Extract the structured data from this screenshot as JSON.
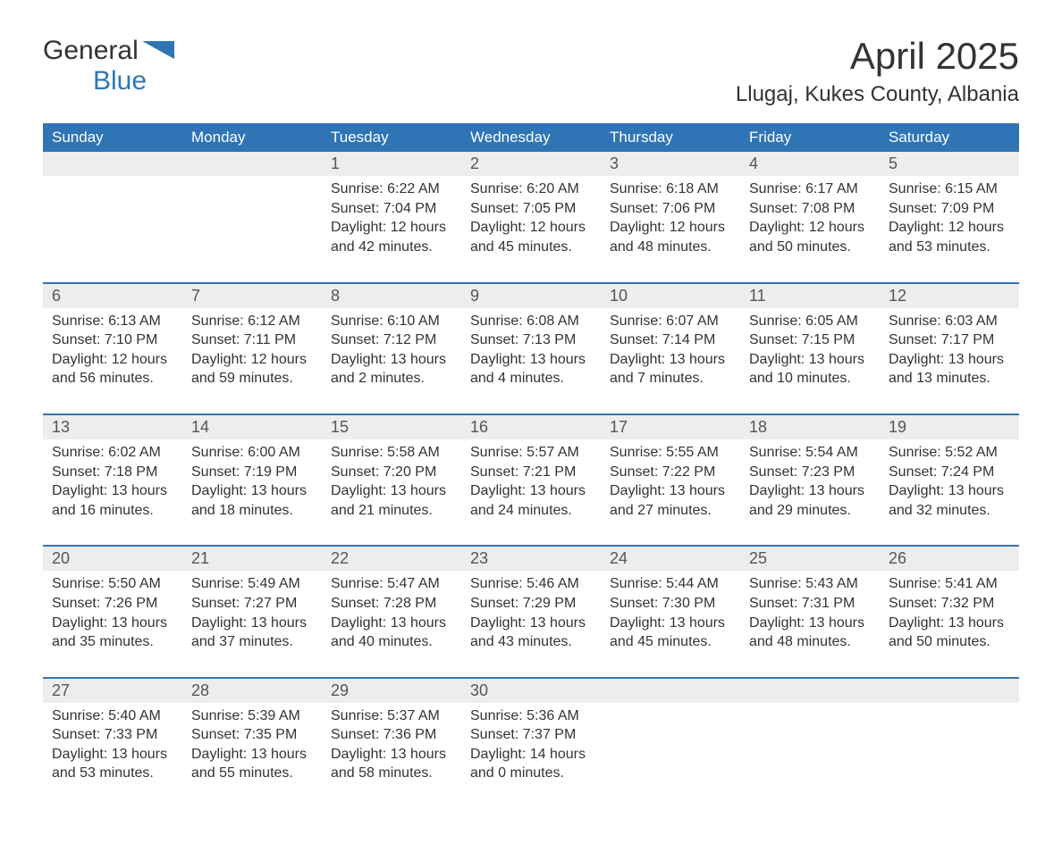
{
  "logo": {
    "part1": "General",
    "part2": "Blue"
  },
  "title": "April 2025",
  "location": "Llugaj, Kukes County, Albania",
  "colors": {
    "brand": "#2f75b5",
    "header_bg": "#2f75b5",
    "header_text": "#ffffff",
    "daynum_bg": "#ededed",
    "text": "#333333",
    "page_bg": "#ffffff"
  },
  "typography": {
    "title_fontsize": 42,
    "location_fontsize": 24,
    "dayhead_fontsize": 17,
    "daynum_fontsize": 18,
    "body_fontsize": 16,
    "logo_fontsize": 30
  },
  "day_headers": [
    "Sunday",
    "Monday",
    "Tuesday",
    "Wednesday",
    "Thursday",
    "Friday",
    "Saturday"
  ],
  "weeks": [
    [
      null,
      null,
      {
        "n": "1",
        "sunrise": "6:22 AM",
        "sunset": "7:04 PM",
        "dh": 12,
        "dm": 42
      },
      {
        "n": "2",
        "sunrise": "6:20 AM",
        "sunset": "7:05 PM",
        "dh": 12,
        "dm": 45
      },
      {
        "n": "3",
        "sunrise": "6:18 AM",
        "sunset": "7:06 PM",
        "dh": 12,
        "dm": 48
      },
      {
        "n": "4",
        "sunrise": "6:17 AM",
        "sunset": "7:08 PM",
        "dh": 12,
        "dm": 50
      },
      {
        "n": "5",
        "sunrise": "6:15 AM",
        "sunset": "7:09 PM",
        "dh": 12,
        "dm": 53
      }
    ],
    [
      {
        "n": "6",
        "sunrise": "6:13 AM",
        "sunset": "7:10 PM",
        "dh": 12,
        "dm": 56
      },
      {
        "n": "7",
        "sunrise": "6:12 AM",
        "sunset": "7:11 PM",
        "dh": 12,
        "dm": 59
      },
      {
        "n": "8",
        "sunrise": "6:10 AM",
        "sunset": "7:12 PM",
        "dh": 13,
        "dm": 2
      },
      {
        "n": "9",
        "sunrise": "6:08 AM",
        "sunset": "7:13 PM",
        "dh": 13,
        "dm": 4
      },
      {
        "n": "10",
        "sunrise": "6:07 AM",
        "sunset": "7:14 PM",
        "dh": 13,
        "dm": 7
      },
      {
        "n": "11",
        "sunrise": "6:05 AM",
        "sunset": "7:15 PM",
        "dh": 13,
        "dm": 10
      },
      {
        "n": "12",
        "sunrise": "6:03 AM",
        "sunset": "7:17 PM",
        "dh": 13,
        "dm": 13
      }
    ],
    [
      {
        "n": "13",
        "sunrise": "6:02 AM",
        "sunset": "7:18 PM",
        "dh": 13,
        "dm": 16
      },
      {
        "n": "14",
        "sunrise": "6:00 AM",
        "sunset": "7:19 PM",
        "dh": 13,
        "dm": 18
      },
      {
        "n": "15",
        "sunrise": "5:58 AM",
        "sunset": "7:20 PM",
        "dh": 13,
        "dm": 21
      },
      {
        "n": "16",
        "sunrise": "5:57 AM",
        "sunset": "7:21 PM",
        "dh": 13,
        "dm": 24
      },
      {
        "n": "17",
        "sunrise": "5:55 AM",
        "sunset": "7:22 PM",
        "dh": 13,
        "dm": 27
      },
      {
        "n": "18",
        "sunrise": "5:54 AM",
        "sunset": "7:23 PM",
        "dh": 13,
        "dm": 29
      },
      {
        "n": "19",
        "sunrise": "5:52 AM",
        "sunset": "7:24 PM",
        "dh": 13,
        "dm": 32
      }
    ],
    [
      {
        "n": "20",
        "sunrise": "5:50 AM",
        "sunset": "7:26 PM",
        "dh": 13,
        "dm": 35
      },
      {
        "n": "21",
        "sunrise": "5:49 AM",
        "sunset": "7:27 PM",
        "dh": 13,
        "dm": 37
      },
      {
        "n": "22",
        "sunrise": "5:47 AM",
        "sunset": "7:28 PM",
        "dh": 13,
        "dm": 40
      },
      {
        "n": "23",
        "sunrise": "5:46 AM",
        "sunset": "7:29 PM",
        "dh": 13,
        "dm": 43
      },
      {
        "n": "24",
        "sunrise": "5:44 AM",
        "sunset": "7:30 PM",
        "dh": 13,
        "dm": 45
      },
      {
        "n": "25",
        "sunrise": "5:43 AM",
        "sunset": "7:31 PM",
        "dh": 13,
        "dm": 48
      },
      {
        "n": "26",
        "sunrise": "5:41 AM",
        "sunset": "7:32 PM",
        "dh": 13,
        "dm": 50
      }
    ],
    [
      {
        "n": "27",
        "sunrise": "5:40 AM",
        "sunset": "7:33 PM",
        "dh": 13,
        "dm": 53
      },
      {
        "n": "28",
        "sunrise": "5:39 AM",
        "sunset": "7:35 PM",
        "dh": 13,
        "dm": 55
      },
      {
        "n": "29",
        "sunrise": "5:37 AM",
        "sunset": "7:36 PM",
        "dh": 13,
        "dm": 58
      },
      {
        "n": "30",
        "sunrise": "5:36 AM",
        "sunset": "7:37 PM",
        "dh": 14,
        "dm": 0
      },
      null,
      null,
      null
    ]
  ],
  "labels": {
    "sunrise": "Sunrise:",
    "sunset": "Sunset:",
    "daylight": "Daylight:",
    "hours": "hours",
    "and": "and",
    "minutes": "minutes."
  }
}
